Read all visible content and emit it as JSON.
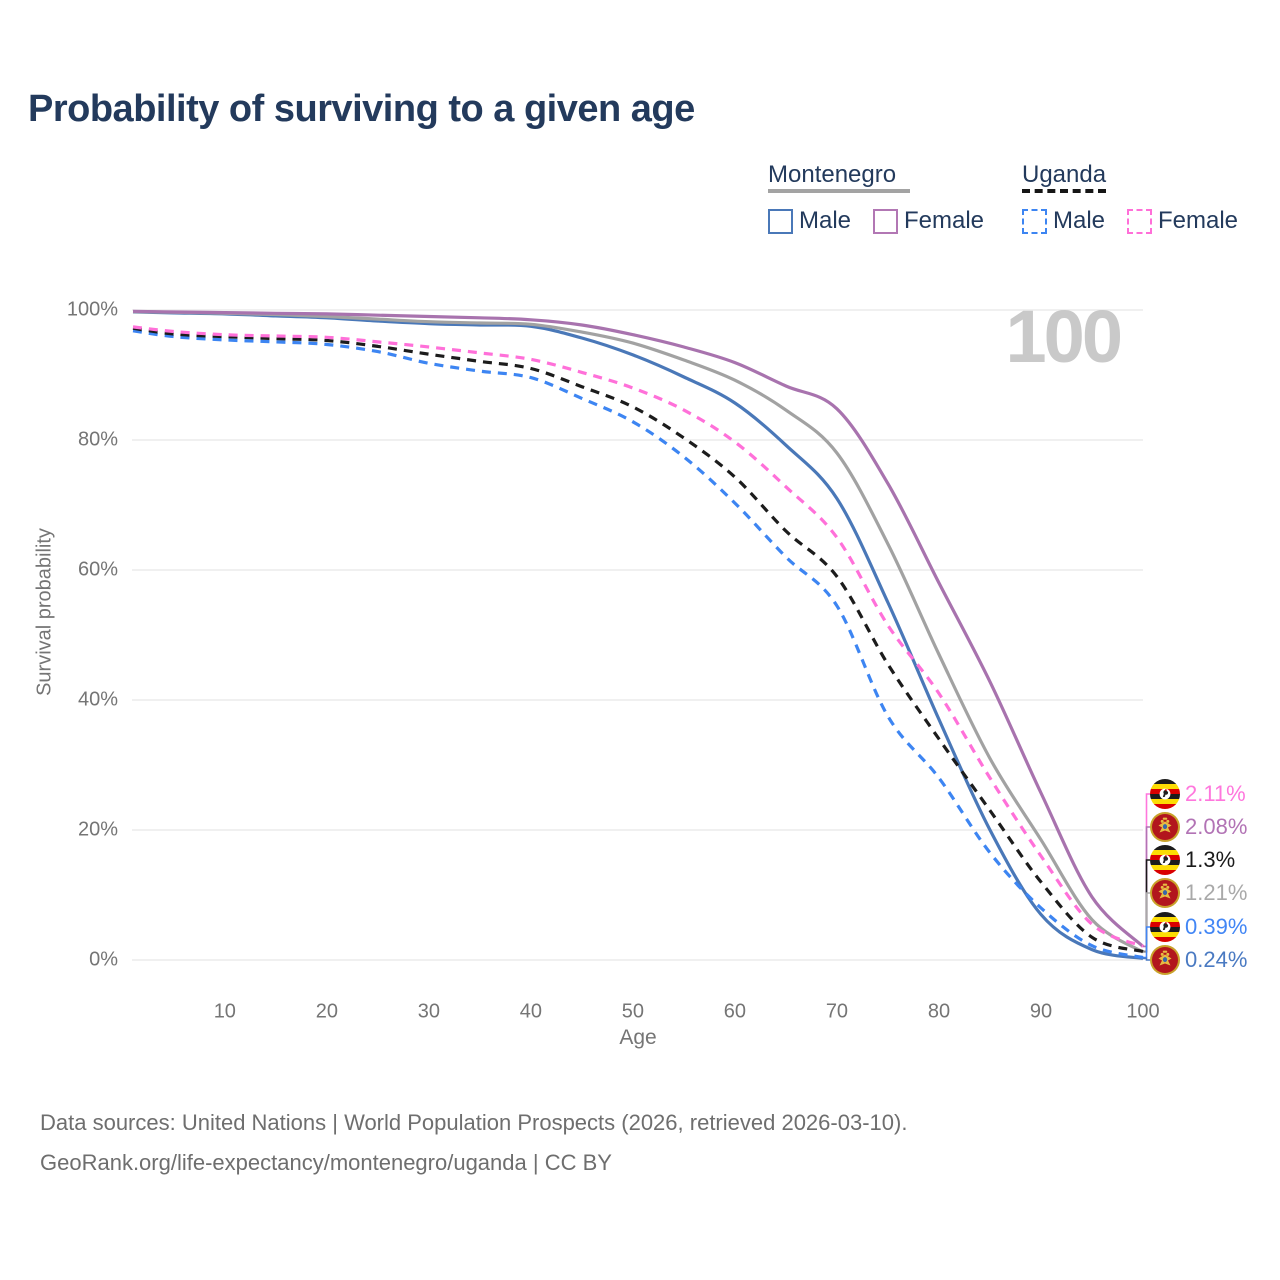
{
  "page": {
    "title": "Probability of surviving to a given age",
    "watermark": "100"
  },
  "legend": {
    "groups": [
      {
        "label": "Montenegro",
        "line_style": "solid",
        "underline_color": "#a3a3a3",
        "items": [
          {
            "label": "Male",
            "color": "#4a78b8"
          },
          {
            "label": "Female",
            "color": "#b277b4"
          }
        ]
      },
      {
        "label": "Uganda",
        "line_style": "dashed",
        "underline_color": "#161616",
        "items": [
          {
            "label": "Male",
            "color": "#3d85f2"
          },
          {
            "label": "Female",
            "color": "#ff6fd8"
          }
        ]
      }
    ]
  },
  "chart_data": {
    "type": "line",
    "title": "Probability of surviving to a given age",
    "xlabel": "Age",
    "ylabel": "Survival probability",
    "xlim": [
      1,
      100
    ],
    "ylim": [
      0,
      100
    ],
    "x_ticks": [
      10,
      20,
      30,
      40,
      50,
      60,
      70,
      80,
      90,
      100
    ],
    "y_ticks": [
      0,
      20,
      40,
      60,
      80,
      100
    ],
    "y_tick_labels": [
      "0%",
      "20%",
      "40%",
      "60%",
      "80%",
      "100%"
    ],
    "grid": "horizontal",
    "legend_position": "top-right",
    "ages": [
      1,
      5,
      10,
      15,
      20,
      25,
      30,
      35,
      40,
      45,
      50,
      55,
      60,
      65,
      70,
      75,
      80,
      85,
      90,
      95,
      100
    ],
    "series": [
      {
        "name": "Montenegro Male",
        "country": "Montenegro",
        "sex": "Male",
        "color": "#4a78b8",
        "dash": "solid",
        "values": [
          99.7,
          99.55,
          99.4,
          99.1,
          98.8,
          98.3,
          97.9,
          97.7,
          97.5,
          95.7,
          93.1,
          89.7,
          85.7,
          79.2,
          71.0,
          55.0,
          37.0,
          20.0,
          7.0,
          1.6,
          0.24
        ],
        "end_label": "0.24%"
      },
      {
        "name": "Montenegro All",
        "country": "Montenegro",
        "sex": "All",
        "color": "#a2a2a2",
        "dash": "solid",
        "values": [
          99.75,
          99.65,
          99.5,
          99.3,
          99.0,
          98.6,
          98.2,
          98.0,
          97.8,
          96.6,
          94.9,
          92.3,
          89.2,
          84.6,
          78.0,
          64.0,
          47.0,
          31.0,
          18.5,
          6.2,
          1.21
        ],
        "end_label": "1.21%"
      },
      {
        "name": "Montenegro Female",
        "country": "Montenegro",
        "sex": "Female",
        "color": "#a873ae",
        "dash": "solid",
        "values": [
          99.8,
          99.7,
          99.6,
          99.5,
          99.4,
          99.2,
          99.0,
          98.8,
          98.5,
          97.7,
          96.2,
          94.3,
          91.9,
          88.3,
          84.8,
          73.3,
          58.0,
          42.8,
          25.7,
          9.7,
          2.08
        ],
        "end_label": "2.08%"
      },
      {
        "name": "Uganda Male",
        "country": "Uganda",
        "sex": "Male",
        "color": "#3d85f2",
        "dash": "dashed",
        "values": [
          96.8,
          95.9,
          95.4,
          95.1,
          94.7,
          93.6,
          91.8,
          90.6,
          89.6,
          86.4,
          82.8,
          77.4,
          70.3,
          62.0,
          54.5,
          37.5,
          28.0,
          16.5,
          8.0,
          2.2,
          0.39
        ],
        "end_label": "0.39%"
      },
      {
        "name": "Uganda All",
        "country": "Uganda",
        "sex": "All",
        "color": "#1c1c1c",
        "dash": "dashed",
        "values": [
          97.2,
          96.3,
          95.9,
          95.6,
          95.3,
          94.4,
          93.2,
          92.1,
          91.0,
          88.2,
          85.1,
          80.3,
          74.3,
          66.0,
          59.0,
          45.5,
          34.0,
          23.0,
          12.0,
          3.5,
          1.3
        ],
        "end_label": "1.3%"
      },
      {
        "name": "Uganda Female",
        "country": "Uganda",
        "sex": "Female",
        "color": "#ff70d9",
        "dash": "dashed",
        "values": [
          97.4,
          96.7,
          96.2,
          96.0,
          95.8,
          95.1,
          94.3,
          93.4,
          92.4,
          90.4,
          88.0,
          84.6,
          79.7,
          72.8,
          65.0,
          51.5,
          41.0,
          28.0,
          16.0,
          5.5,
          2.11
        ],
        "end_label": "2.11%"
      }
    ]
  },
  "end_labels": [
    {
      "value": "2.11%",
      "color": "#ff77dd",
      "flag": "uganda",
      "series": "Uganda Female"
    },
    {
      "value": "2.08%",
      "color": "#b273b5",
      "flag": "montenegro",
      "series": "Montenegro Female"
    },
    {
      "value": "1.3%",
      "color": "#1a1a1a",
      "flag": "uganda",
      "series": "Uganda All"
    },
    {
      "value": "1.21%",
      "color": "#a9a9a9",
      "flag": "montenegro",
      "series": "Montenegro All"
    },
    {
      "value": "0.39%",
      "color": "#4286f5",
      "flag": "uganda",
      "series": "Uganda Male"
    },
    {
      "value": "0.24%",
      "color": "#4a7ac2",
      "flag": "montenegro",
      "series": "Montenegro Male"
    }
  ],
  "footer": {
    "line1": "Data sources: United Nations | World Population Prospects (2026, retrieved 2026-03-10).",
    "line2": "GeoRank.org/life-expectancy/montenegro/uganda | CC BY"
  }
}
